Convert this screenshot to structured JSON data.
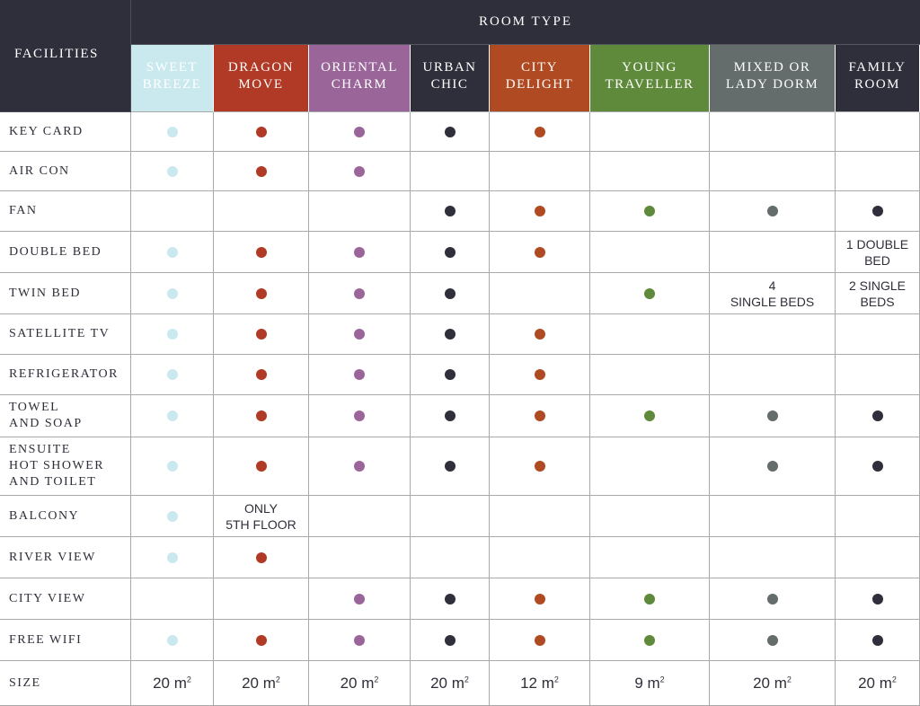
{
  "header": {
    "facilities_label": "FACILITIES",
    "room_type_label": "ROOM TYPE"
  },
  "rooms": [
    {
      "label": "SWEET\nBREEZE",
      "color": "#c9e9ef",
      "text_color": "#ffffff",
      "dot_color": "#c9e9ef"
    },
    {
      "label": "DRAGON\nMOVE",
      "color": "#b03a26",
      "text_color": "#ffffff",
      "dot_color": "#b03a26"
    },
    {
      "label": "ORIENTAL\nCHARM",
      "color": "#9a6699",
      "text_color": "#ffffff",
      "dot_color": "#9a6699"
    },
    {
      "label": "URBAN\nCHIC",
      "color": "#2e2f3a",
      "text_color": "#ffffff",
      "dot_color": "#2e2f3a"
    },
    {
      "label": "CITY\nDELIGHT",
      "color": "#b04a22",
      "text_color": "#ffffff",
      "dot_color": "#b04a22"
    },
    {
      "label": "YOUNG\nTRAVELLER",
      "color": "#5f8a3c",
      "text_color": "#ffffff",
      "dot_color": "#5f8a3c"
    },
    {
      "label": "MIXED OR\nLADY DORM",
      "color": "#646d6c",
      "text_color": "#ffffff",
      "dot_color": "#646d6c"
    },
    {
      "label": "FAMILY\nROOM",
      "color": "#2e2f3a",
      "text_color": "#ffffff",
      "dot_color": "#2e2f3a"
    }
  ],
  "facilities": [
    {
      "label": "KEY CARD",
      "cells": [
        true,
        true,
        true,
        true,
        true,
        false,
        false,
        false
      ]
    },
    {
      "label": "AIR CON",
      "cells": [
        true,
        true,
        true,
        false,
        false,
        false,
        false,
        false
      ]
    },
    {
      "label": "FAN",
      "cells": [
        false,
        false,
        false,
        true,
        true,
        true,
        true,
        true
      ]
    },
    {
      "label": "DOUBLE BED",
      "cells": [
        true,
        true,
        true,
        true,
        true,
        false,
        false,
        "1 DOUBLE\nBED"
      ]
    },
    {
      "label": "TWIN BED",
      "cells": [
        true,
        true,
        true,
        true,
        false,
        true,
        "4\nSINGLE BEDS",
        "2 SINGLE\nBEDS"
      ]
    },
    {
      "label": "SATELLITE TV",
      "cells": [
        true,
        true,
        true,
        true,
        true,
        false,
        false,
        false
      ]
    },
    {
      "label": "REFRIGERATOR",
      "cells": [
        true,
        true,
        true,
        true,
        true,
        false,
        false,
        false
      ]
    },
    {
      "label": "TOWEL\nAND SOAP",
      "cells": [
        true,
        true,
        true,
        true,
        true,
        true,
        true,
        true
      ]
    },
    {
      "label": "ENSUITE\nHOT SHOWER\nAND TOILET",
      "cells": [
        true,
        true,
        true,
        true,
        true,
        false,
        true,
        true
      ]
    },
    {
      "label": "BALCONY",
      "cells": [
        true,
        "ONLY\n5TH FLOOR",
        false,
        false,
        false,
        false,
        false,
        false
      ]
    },
    {
      "label": "RIVER VIEW",
      "cells": [
        true,
        true,
        false,
        false,
        false,
        false,
        false,
        false
      ]
    },
    {
      "label": "CITY VIEW",
      "cells": [
        false,
        false,
        true,
        true,
        true,
        true,
        true,
        true
      ]
    },
    {
      "label": "FREE WIFI",
      "cells": [
        true,
        true,
        true,
        true,
        true,
        true,
        true,
        true
      ]
    }
  ],
  "size": {
    "label": "SIZE",
    "values": [
      "20 m",
      "20 m",
      "20 m",
      "20 m",
      "12 m",
      "9 m",
      "20 m",
      "20 m"
    ],
    "unit_superscript": "2"
  }
}
